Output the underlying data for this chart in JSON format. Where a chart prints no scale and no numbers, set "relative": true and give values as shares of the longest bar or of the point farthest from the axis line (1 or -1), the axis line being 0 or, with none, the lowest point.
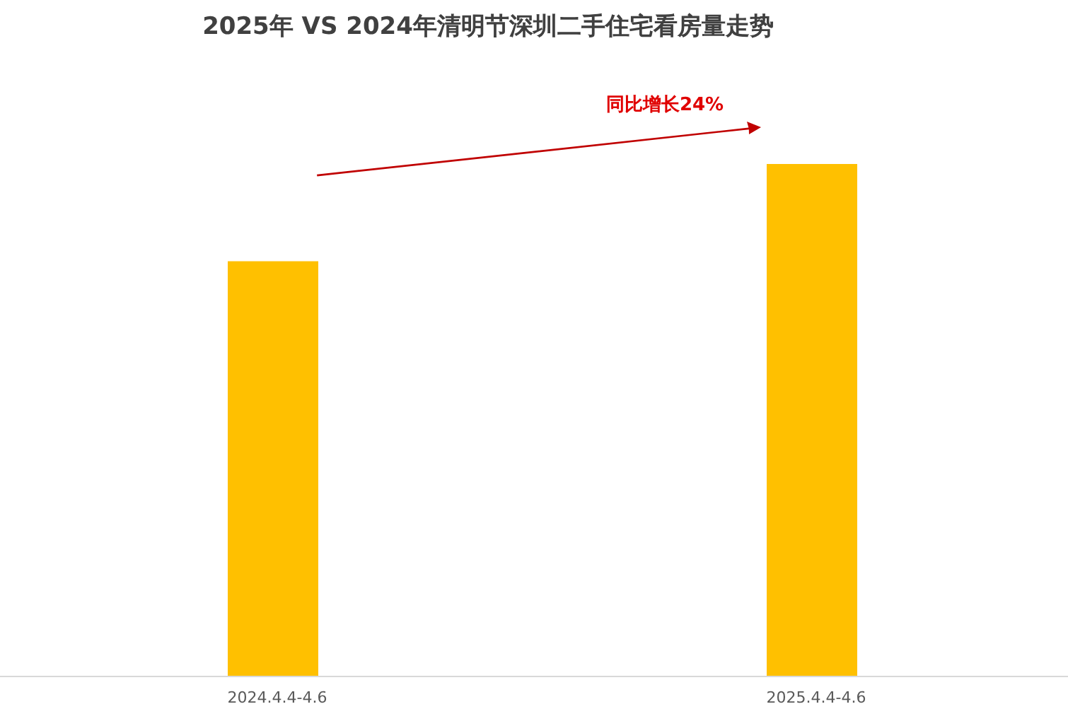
{
  "chart_data": {
    "type": "bar",
    "title": "2025年 VS 2024年清明节深圳二手住宅看房量走势",
    "categories": [
      "2024.4.4-4.6",
      "2025.4.4-4.6"
    ],
    "values": [
      0.81,
      1
    ],
    "relative": true,
    "color": "#ffc000",
    "annotations": [
      "同比增长24%"
    ]
  }
}
